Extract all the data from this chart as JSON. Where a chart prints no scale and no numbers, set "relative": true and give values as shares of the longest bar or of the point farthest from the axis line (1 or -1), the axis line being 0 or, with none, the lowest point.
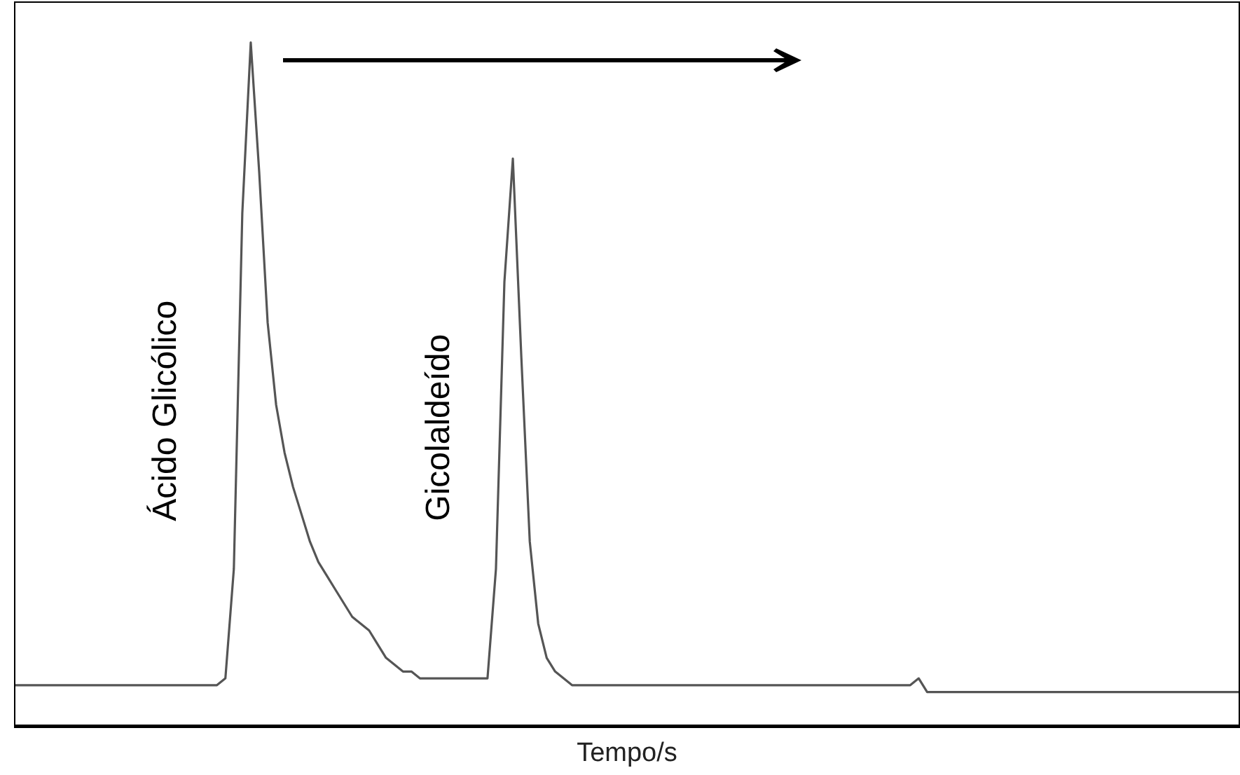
{
  "chart_data": {
    "type": "line",
    "relative": true,
    "xlabel": "Tempo/s",
    "grid": false,
    "legend": false,
    "marker": "none",
    "line_style": "solid",
    "categories": [
      null,
      null,
      null,
      null,
      null,
      null,
      null,
      null,
      null,
      null,
      null,
      null,
      null,
      null,
      null,
      null,
      null,
      null,
      null,
      null,
      null,
      null,
      null,
      null,
      null,
      null,
      null,
      null,
      null,
      null,
      null,
      null,
      null,
      null,
      null,
      null,
      null,
      null,
      null,
      null,
      null,
      null,
      null,
      null,
      null,
      null,
      null,
      null,
      null,
      null,
      null,
      null,
      null,
      null,
      null,
      null,
      null,
      null,
      null,
      null,
      null,
      null,
      null,
      null,
      null,
      null,
      null,
      null,
      null,
      null,
      null,
      null,
      null,
      null,
      null,
      null,
      null,
      null,
      null,
      null,
      null,
      null,
      null,
      null,
      null,
      null,
      null,
      null,
      null,
      null,
      null,
      null,
      null,
      null,
      null,
      null,
      null,
      null,
      null,
      null,
      null,
      null,
      null,
      null,
      null,
      null,
      null,
      null,
      null,
      null,
      null,
      null,
      null,
      null,
      null,
      null,
      null,
      null,
      null,
      null,
      null,
      null,
      null,
      null,
      null,
      null,
      null,
      null,
      null,
      null,
      null,
      null,
      null,
      null,
      null,
      null,
      null,
      null,
      null,
      null,
      null,
      null,
      null,
      null,
      null,
      null
    ],
    "series": [
      {
        "color": "#555555",
        "values": [
          0.06,
          0.06,
          0.06,
          0.06,
          0.06,
          0.06,
          0.06,
          0.06,
          0.06,
          0.06,
          0.06,
          0.06,
          0.06,
          0.06,
          0.06,
          0.06,
          0.06,
          0.06,
          0.06,
          0.06,
          0.06,
          0.06,
          0.06,
          0.06,
          0.06,
          0.07,
          0.23,
          0.75,
          1,
          0.81,
          0.59,
          0.47,
          0.4,
          0.35,
          0.31,
          0.27,
          0.24,
          0.22,
          0.2,
          0.18,
          0.16,
          0.15,
          0.14,
          0.12,
          0.1,
          0.09,
          0.08,
          0.08,
          0.07,
          0.07,
          0.07,
          0.07,
          0.07,
          0.07,
          0.07,
          0.07,
          0.07,
          0.23,
          0.65,
          0.83,
          0.54,
          0.27,
          0.15,
          0.1,
          0.08,
          0.07,
          0.06,
          0.06,
          0.06,
          0.06,
          0.06,
          0.06,
          0.06,
          0.06,
          0.06,
          0.06,
          0.06,
          0.06,
          0.06,
          0.06,
          0.06,
          0.06,
          0.06,
          0.06,
          0.06,
          0.06,
          0.06,
          0.06,
          0.06,
          0.06,
          0.06,
          0.06,
          0.06,
          0.06,
          0.06,
          0.06,
          0.06,
          0.06,
          0.06,
          0.06,
          0.06,
          0.06,
          0.06,
          0.06,
          0.06,
          0.06,
          0.06,
          0.07,
          0.05,
          0.05,
          0.05,
          0.05,
          0.05,
          0.05,
          0.05,
          0.05,
          0.05,
          0.05,
          0.05,
          0.05,
          0.05,
          0.05,
          0.05,
          0.05,
          0.05,
          0.05,
          0.05,
          0.05,
          0.05,
          0.05,
          0.05,
          0.05,
          0.05,
          0.05,
          0.05,
          0.05,
          0.05,
          0.05,
          0.05,
          0.05,
          0.05,
          0.05,
          0.05,
          0.05,
          0.05,
          0.05
        ]
      }
    ],
    "annotations": [
      "Ácido Glicólico",
      "Gicolaldeído"
    ]
  }
}
